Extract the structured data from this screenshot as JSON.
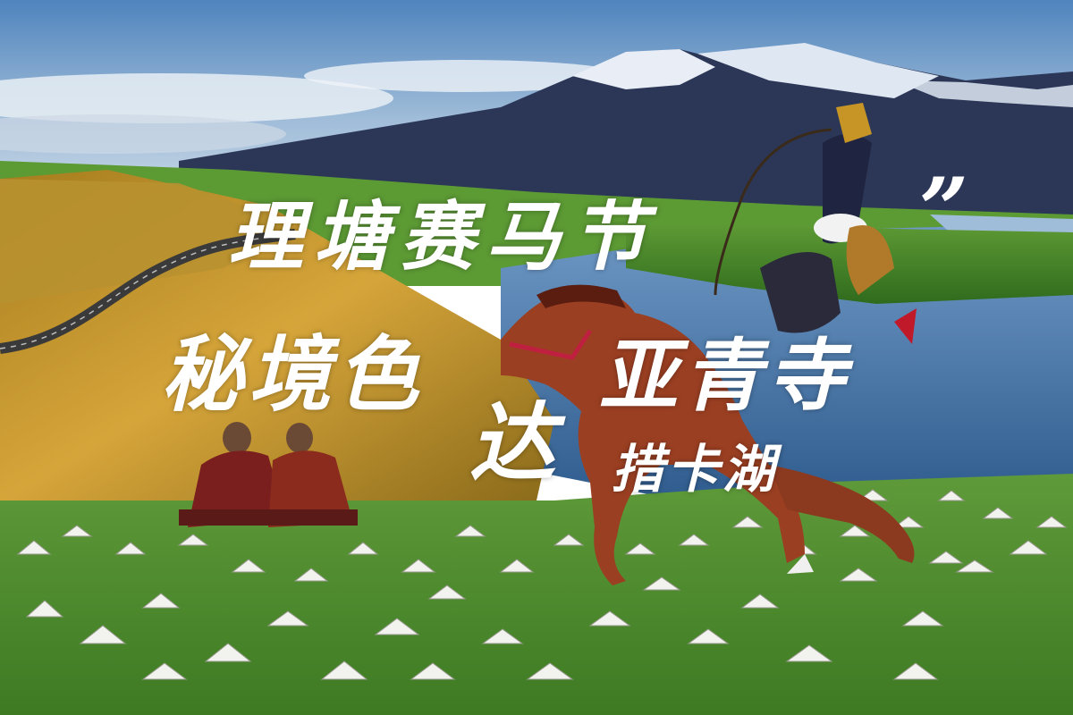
{
  "title": {
    "line1": "理塘赛马节",
    "line2_left": "秘境色",
    "line2_mid": "达",
    "line2_right": "亚青寺",
    "line3": "措卡湖",
    "quote_mark": "”"
  },
  "colors": {
    "sky_top": "#5d8fc4",
    "sky_bottom": "#dbe6ef",
    "mountain": "#2e3a5c",
    "snow": "#e9eef6",
    "grass": "#4f8c2c",
    "golden_hill": "#c79526",
    "lake": "#3d6fa8",
    "horse": "#9b3f22",
    "robe": "#7a1e1e"
  }
}
